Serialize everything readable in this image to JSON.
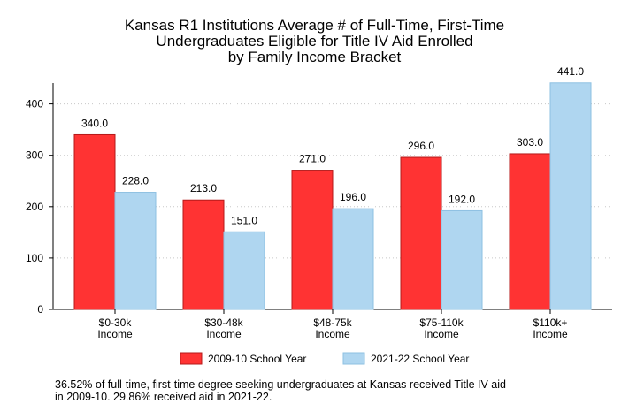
{
  "chart_data": {
    "type": "bar",
    "title_lines": [
      "Kansas R1 Institutions Average # of Full-Time, First-Time",
      "Undergraduates Eligible for Title IV Aid Enrolled",
      "by Family Income Bracket"
    ],
    "categories": [
      [
        "$0-30k",
        "Income"
      ],
      [
        "$30-48k",
        "Income"
      ],
      [
        "$48-75k",
        "Income"
      ],
      [
        "$75-110k",
        "Income"
      ],
      [
        "$110k+",
        "Income"
      ]
    ],
    "series": [
      {
        "name": "2009-10 School Year",
        "color": "#ff3333",
        "edge": "#b51a1a",
        "values": [
          340.0,
          213.0,
          271.0,
          296.0,
          303.0
        ],
        "labels": [
          "340.0",
          "213.0",
          "271.0",
          "296.0",
          "303.0"
        ]
      },
      {
        "name": "2021-22 School Year",
        "color": "#afd6f0",
        "edge": "#8ec0e2",
        "values": [
          228.0,
          151.0,
          196.0,
          192.0,
          441.0
        ],
        "labels": [
          "228.0",
          "151.0",
          "196.0",
          "192.0",
          "441.0"
        ]
      }
    ],
    "ylim": [
      0,
      441
    ],
    "yticks": [
      0,
      100,
      200,
      300,
      400
    ],
    "grid": "horizontal dotted",
    "legend": "bottom-center",
    "note_lines": [
      "36.52% of full-time, first-time degree seeking undergraduates at Kansas received Title IV aid",
      "in 2009-10. 29.86% received aid in 2021-22."
    ]
  }
}
